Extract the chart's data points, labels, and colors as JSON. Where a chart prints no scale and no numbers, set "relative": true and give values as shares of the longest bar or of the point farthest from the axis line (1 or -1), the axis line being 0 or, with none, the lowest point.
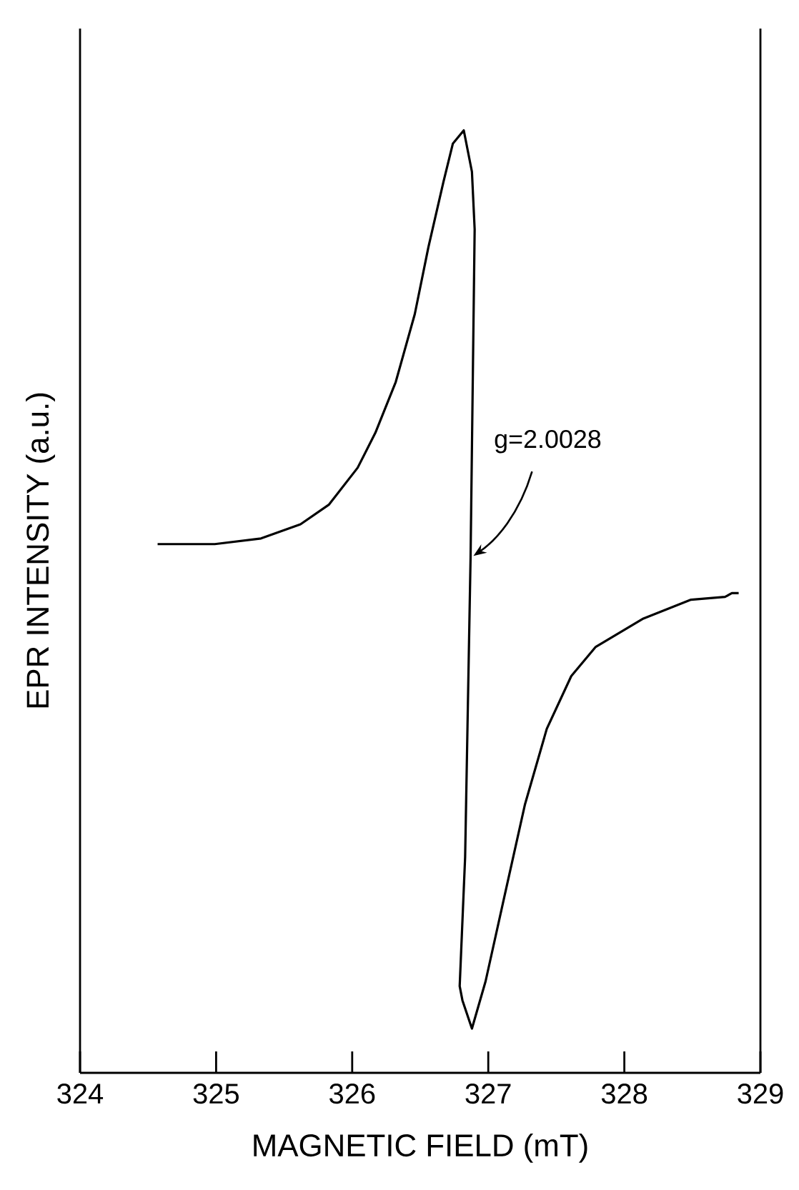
{
  "chart_data": {
    "type": "line",
    "xlabel": "MAGNETIC FIELD (mT)",
    "ylabel": "EPR INTENSITY (a.u.)",
    "relative": true,
    "xlim": [
      324,
      329
    ],
    "xticks": [
      324,
      325,
      326,
      327,
      328,
      329
    ],
    "grid": false,
    "marker": "none",
    "line_style": "solid",
    "series": [
      {
        "color": "#000000",
        "x": [
          324.57,
          324.99,
          325.33,
          325.62,
          325.83,
          326.04,
          326.17,
          326.32,
          326.46,
          326.56,
          326.67,
          326.74,
          326.82,
          326.88,
          326.9,
          326.87,
          326.83,
          326.79,
          326.81,
          326.88,
          326.98,
          327.12,
          327.27,
          327.43,
          327.61,
          327.79,
          328.14,
          328.49,
          328.74,
          328.79,
          328.84
        ],
        "values": [
          0.561,
          0.561,
          0.567,
          0.582,
          0.603,
          0.642,
          0.679,
          0.733,
          0.805,
          0.876,
          0.945,
          0.986,
          1.0,
          0.956,
          0.895,
          0.547,
          0.229,
          0.092,
          0.077,
          0.047,
          0.097,
          0.188,
          0.285,
          0.365,
          0.421,
          0.452,
          0.482,
          0.502,
          0.505,
          0.509,
          0.509
        ]
      }
    ],
    "annotations": [
      {
        "text": "g=2.0028",
        "x": 326.87,
        "y": 0.547
      }
    ]
  }
}
